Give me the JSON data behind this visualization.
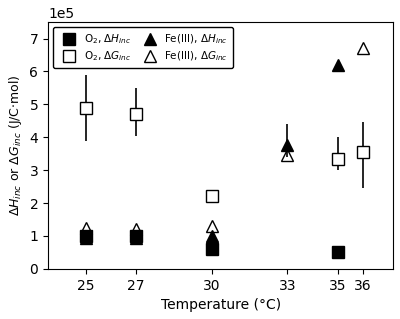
{
  "temperatures": [
    25,
    27,
    30,
    33,
    35,
    36
  ],
  "O2_dH": {
    "values": [
      100000.0,
      100000.0,
      60000.0,
      null,
      50000.0,
      null
    ],
    "yerr_low": [
      null,
      null,
      null,
      null,
      null,
      null
    ],
    "yerr_high": [
      null,
      null,
      null,
      null,
      null,
      null
    ]
  },
  "O2_dG": {
    "values": [
      490000.0,
      470000.0,
      220000.0,
      null,
      335000.0,
      355000.0
    ],
    "yerr_low": [
      100000.0,
      65000.0,
      null,
      null,
      35000.0,
      110000.0
    ],
    "yerr_high": [
      100000.0,
      80000.0,
      null,
      null,
      65000.0,
      90000.0
    ]
  },
  "FeIII_dH": {
    "values": [
      95000.0,
      95000.0,
      100000.0,
      375000.0,
      620000.0,
      null
    ],
    "yerr_low": [
      null,
      null,
      null,
      35000.0,
      null,
      null
    ],
    "yerr_high": [
      null,
      null,
      null,
      65000.0,
      null,
      null
    ]
  },
  "FeIII_dG": {
    "values": [
      125000.0,
      120000.0,
      130000.0,
      345000.0,
      null,
      670000.0
    ],
    "yerr_low": [
      null,
      null,
      15000.0,
      15000.0,
      null,
      null
    ],
    "yerr_high": [
      null,
      null,
      5000.0,
      10000.0,
      null,
      null
    ]
  },
  "xlim": [
    23.5,
    37.2
  ],
  "ylim": [
    0,
    750000.0
  ],
  "yticks": [
    0,
    100000.0,
    200000.0,
    300000.0,
    400000.0,
    500000.0,
    600000.0,
    700000.0
  ],
  "xlabel": "Temperature (°C)",
  "marker_size": 9,
  "background_color": "#ffffff"
}
